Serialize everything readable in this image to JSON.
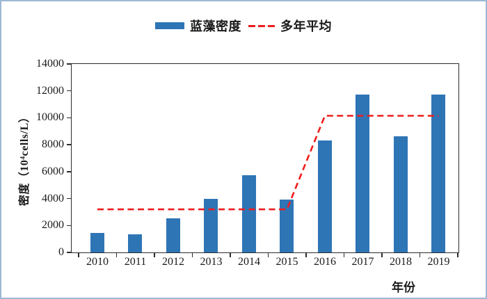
{
  "colors": {
    "bar": "#2e75b6",
    "line": "#ee1c1c",
    "frame_border": "#9cb9d3",
    "axis": "#2b2b2b",
    "text": "#1a1a1a"
  },
  "chart_data": {
    "type": "bar",
    "title": "",
    "categories": [
      "2010",
      "2011",
      "2012",
      "2013",
      "2014",
      "2015",
      "2016",
      "2017",
      "2018",
      "2019"
    ],
    "series": [
      {
        "name": "蓝藻密度",
        "type": "bar",
        "color": "#2e75b6",
        "values": [
          1400,
          1300,
          2500,
          3950,
          5700,
          3900,
          8300,
          11700,
          8600,
          11700
        ]
      },
      {
        "name": "多年平均",
        "type": "line",
        "style": "dashed",
        "color": "#ee1c1c",
        "values": [
          3200,
          3200,
          3200,
          3200,
          3200,
          3200,
          10150,
          10150,
          10150,
          10150
        ]
      }
    ],
    "xlabel": "年份",
    "ylabel": "密度（10⁴cells/L）",
    "ylim": [
      0,
      14000
    ],
    "ytick_step": 2000,
    "y_tick_labels": [
      "0",
      "2000",
      "4000",
      "6000",
      "8000",
      "10000",
      "12000",
      "14000"
    ],
    "grid": false,
    "legend_position": "top-center"
  }
}
